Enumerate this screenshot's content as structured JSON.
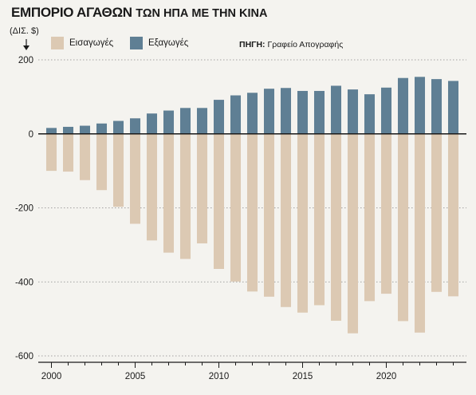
{
  "header": {
    "title_bold": "ΕΜΠΟΡΙΟ ΑΓΑΘΩΝ",
    "title_rest": "ΤΩΝ ΗΠΑ ΜΕ ΤΗΝ ΚΙΝΑ",
    "unit": "(ΔΙΣ. $)"
  },
  "legend": {
    "imports_label": "Εισαγωγές",
    "exports_label": "Εξαγωγές"
  },
  "source": {
    "label": "ΠΗΓΗ:",
    "text": "Γραφείο Απογραφής"
  },
  "colors": {
    "imports": "#dcc9b3",
    "exports": "#5f7f94",
    "background": "#f4f3ef",
    "axis": "#1a1a1a",
    "grid": "#888888"
  },
  "chart_data": {
    "type": "bar",
    "x": [
      2000,
      2001,
      2002,
      2003,
      2004,
      2005,
      2006,
      2007,
      2008,
      2009,
      2010,
      2011,
      2012,
      2013,
      2014,
      2015,
      2016,
      2017,
      2018,
      2019,
      2020,
      2021,
      2022,
      2023,
      2024
    ],
    "series": [
      {
        "name": "Εισαγωγές",
        "values": [
          -100,
          -102,
          -125,
          -152,
          -197,
          -243,
          -288,
          -321,
          -338,
          -296,
          -365,
          -399,
          -426,
          -440,
          -468,
          -483,
          -463,
          -505,
          -539,
          -452,
          -432,
          -506,
          -537,
          -427,
          -439
        ]
      },
      {
        "name": "Εξαγωγές",
        "values": [
          16,
          19,
          22,
          28,
          35,
          42,
          55,
          63,
          70,
          70,
          92,
          104,
          111,
          122,
          124,
          116,
          116,
          130,
          120,
          107,
          125,
          151,
          154,
          148,
          143
        ]
      }
    ],
    "ylim": [
      -600,
      200
    ],
    "yticks": [
      200,
      0,
      -200,
      -400,
      -600
    ],
    "ytick_labels": [
      "200",
      "0",
      "-200",
      "-400",
      "-600"
    ],
    "xticks": [
      2000,
      2005,
      2010,
      2015,
      2020
    ],
    "xtick_labels": [
      "2000",
      "2005",
      "2010",
      "2015",
      "2020"
    ],
    "xlim": [
      1999.5,
      2024.5
    ],
    "grid": "dotted-horizontal"
  }
}
